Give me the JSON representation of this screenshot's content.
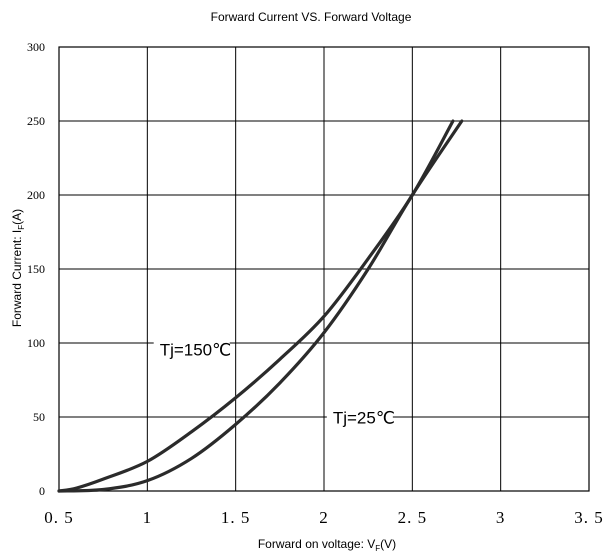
{
  "chart_data": {
    "type": "line",
    "title": "Forward Current VS. Forward Voltage",
    "xlabel_main": "Forward on voltage: ",
    "xlabel_symbol": "V",
    "xlabel_sub": "F",
    "xlabel_unit": "(V)",
    "ylabel_main": "Forward Current: ",
    "ylabel_symbol": "I",
    "ylabel_sub": "F",
    "ylabel_unit": "(A)",
    "xlim": [
      0.5,
      3.5
    ],
    "ylim": [
      0,
      300
    ],
    "x_ticks": [
      "0.5",
      "1",
      "1.5",
      "2",
      "2.5",
      "3",
      "3.5"
    ],
    "y_ticks": [
      "0",
      "50",
      "100",
      "150",
      "200",
      "250",
      "300"
    ],
    "grid": true,
    "series": [
      {
        "name": "Tj=150℃",
        "x": [
          0.5,
          0.6,
          0.75,
          1.0,
          1.25,
          1.5,
          1.75,
          2.0,
          2.25,
          2.5,
          2.73
        ],
        "y": [
          0,
          2,
          8,
          20,
          40,
          63,
          89,
          118,
          157,
          200,
          250
        ]
      },
      {
        "name": "Tj=25℃",
        "x": [
          0.5,
          0.75,
          1.0,
          1.25,
          1.5,
          1.75,
          2.0,
          2.25,
          2.5,
          2.78
        ],
        "y": [
          0,
          1,
          7,
          22,
          45,
          73,
          107,
          150,
          200,
          250
        ]
      }
    ],
    "annotations": [
      {
        "text": "Tj=150℃",
        "x": 1.07,
        "y": 93
      },
      {
        "text": "Tj=25℃",
        "x": 2.05,
        "y": 47
      }
    ],
    "line_color": "#2b2b2b"
  }
}
